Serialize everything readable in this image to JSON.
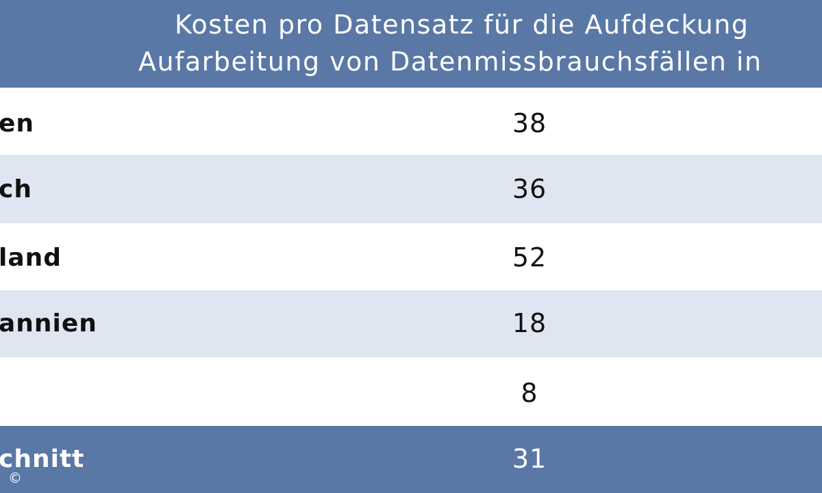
{
  "chart_data": {
    "type": "table",
    "column_header_lines": [
      "Kosten pro Datensatz für die Aufdeckung",
      "Aufarbeitung von Datenmissbrauchsfällen in"
    ],
    "rows": [
      {
        "label": "en",
        "value": "38"
      },
      {
        "label": "ch",
        "value": "36"
      },
      {
        "label": "land",
        "value": "52"
      },
      {
        "label": "annien",
        "value": "18"
      },
      {
        "label": "",
        "value": "8"
      }
    ],
    "footer": {
      "label": "chnitt",
      "value": "31"
    }
  },
  "copyright": "©",
  "colors": {
    "header_bg": "#5a78a6",
    "shaded_row": "#dfe6f1",
    "white_row": "#ffffff"
  }
}
